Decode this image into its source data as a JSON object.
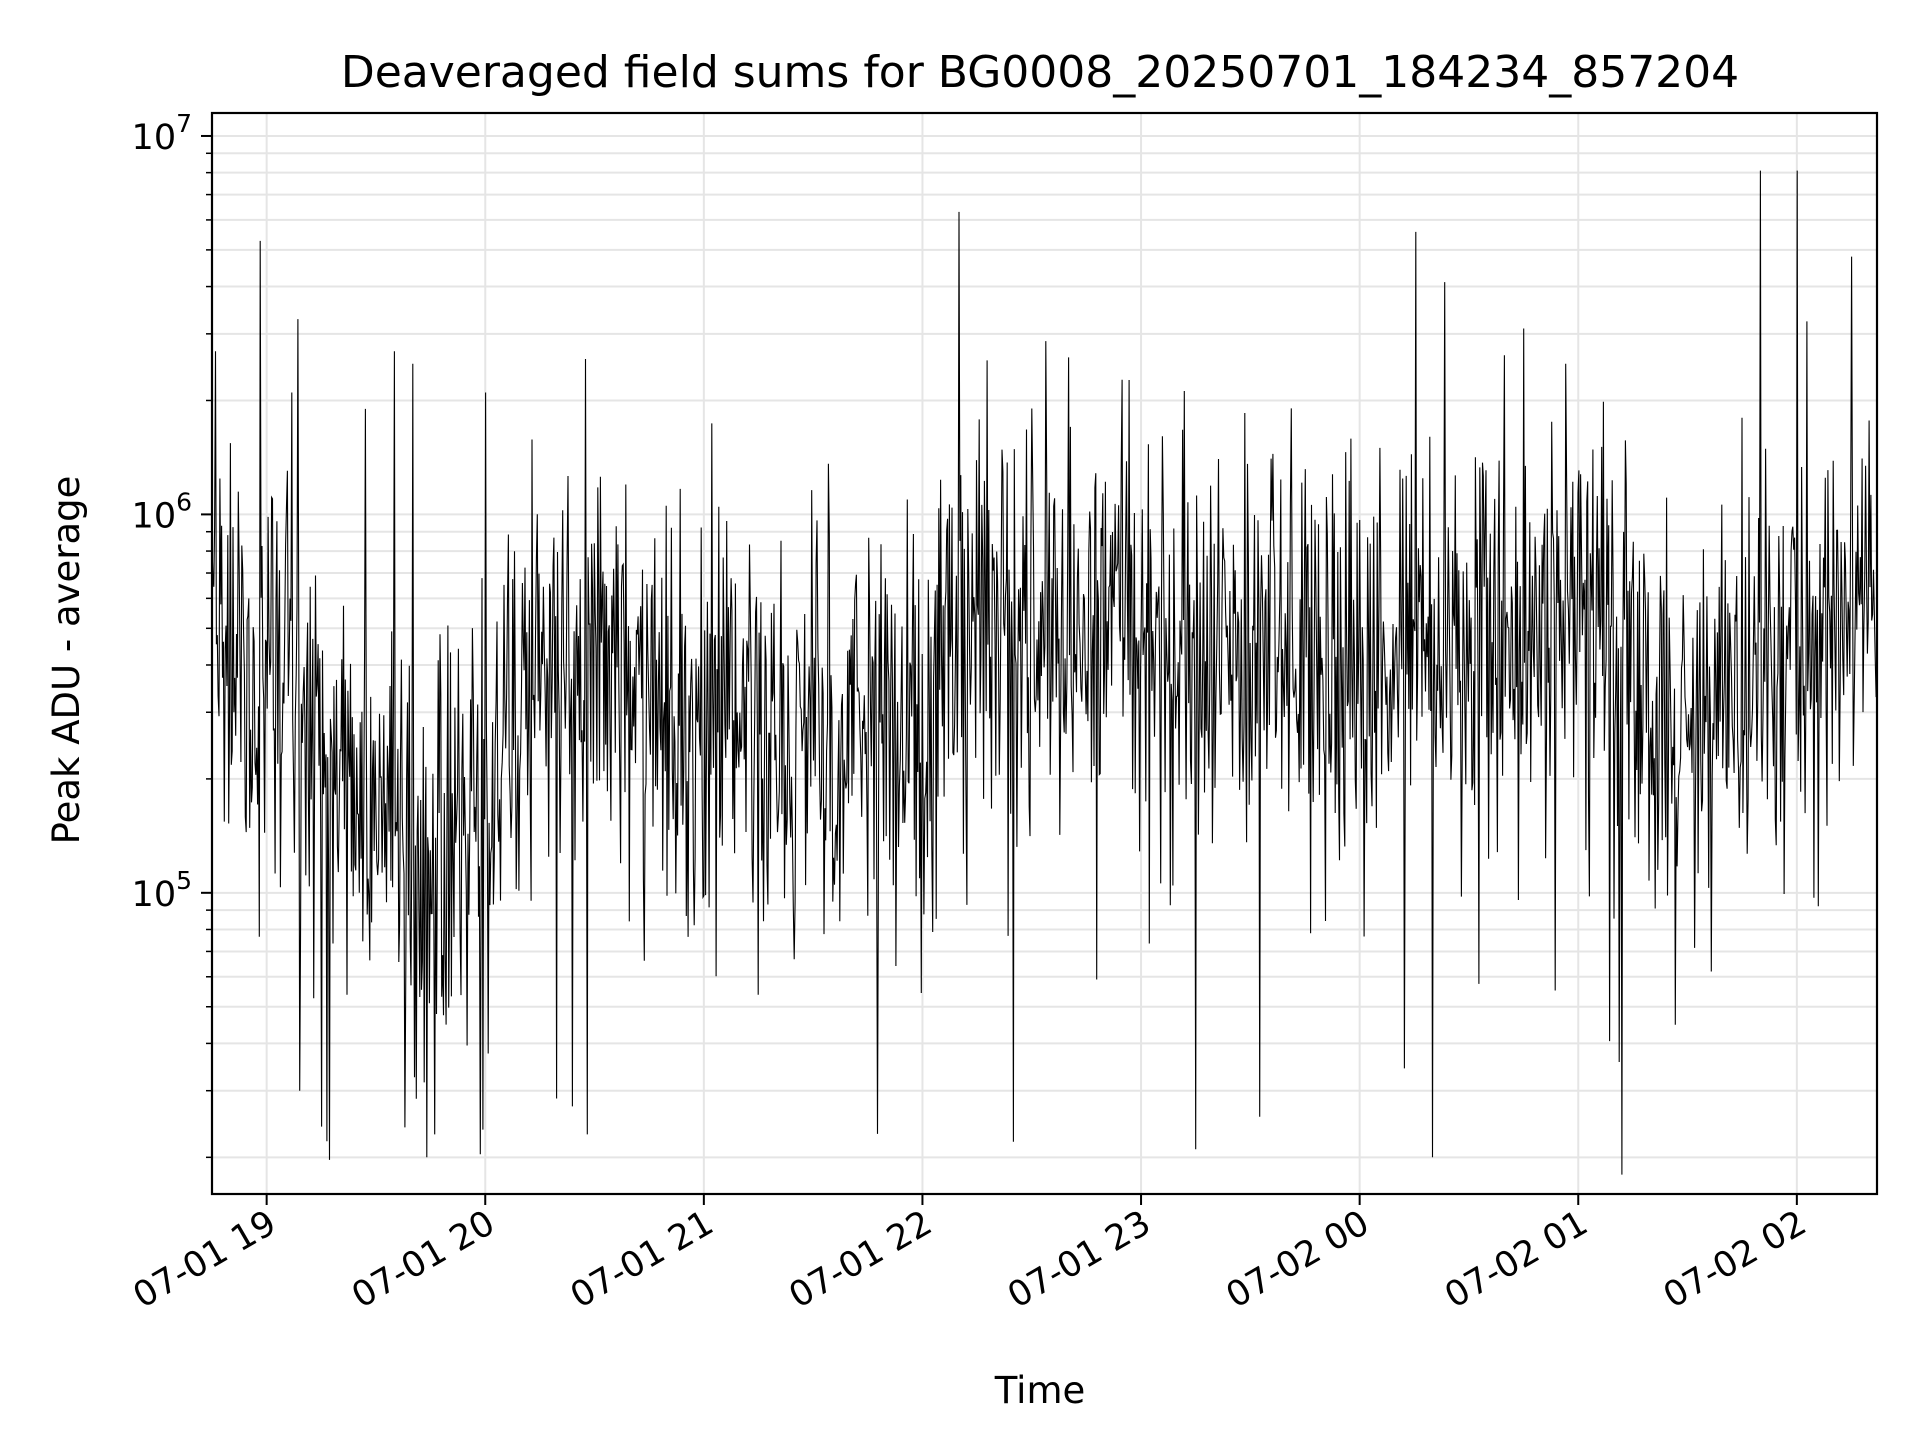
{
  "chart_data": {
    "type": "line",
    "title": "Deaveraged field sums for BG0008_20250701_184234_857204",
    "xlabel": "Time",
    "ylabel": "Peak ADU - average",
    "yscale": "log",
    "ylim": [
      16000,
      11500000
    ],
    "xlim": [
      "2025-07-01 18:45",
      "2025-07-02 02:22"
    ],
    "grid": true,
    "line_color": "#000000",
    "grid_color": "#e5e5e5",
    "x_ticks": [
      {
        "value": "2025-07-01 19:00",
        "label": "07-01 19"
      },
      {
        "value": "2025-07-01 20:00",
        "label": "07-01 20"
      },
      {
        "value": "2025-07-01 21:00",
        "label": "07-01 21"
      },
      {
        "value": "2025-07-01 22:00",
        "label": "07-01 22"
      },
      {
        "value": "2025-07-01 23:00",
        "label": "07-01 23"
      },
      {
        "value": "2025-07-02 00:00",
        "label": "07-02 00"
      },
      {
        "value": "2025-07-02 01:00",
        "label": "07-02 01"
      },
      {
        "value": "2025-07-02 02:00",
        "label": "07-02 02"
      }
    ],
    "y_ticks": [
      {
        "value": 100000,
        "base": "10",
        "exp": "5"
      },
      {
        "value": 1000000,
        "base": "10",
        "exp": "6"
      },
      {
        "value": 10000000,
        "base": "10",
        "exp": "7"
      }
    ],
    "series_profile": {
      "typical_level": [
        {
          "time": "2025-07-01 18:45",
          "value": 450000
        },
        {
          "time": "2025-07-01 19:10",
          "value": 300000
        },
        {
          "time": "2025-07-01 19:25",
          "value": 170000
        },
        {
          "time": "2025-07-01 19:45",
          "value": 110000
        },
        {
          "time": "2025-07-01 20:00",
          "value": 170000
        },
        {
          "time": "2025-07-01 20:10",
          "value": 350000
        },
        {
          "time": "2025-07-01 20:30",
          "value": 400000
        },
        {
          "time": "2025-07-01 21:00",
          "value": 270000
        },
        {
          "time": "2025-07-01 21:30",
          "value": 250000
        },
        {
          "time": "2025-07-01 22:00",
          "value": 300000
        },
        {
          "time": "2025-07-01 22:20",
          "value": 500000
        },
        {
          "time": "2025-07-01 23:00",
          "value": 500000
        },
        {
          "time": "2025-07-02 00:00",
          "value": 450000
        },
        {
          "time": "2025-07-02 00:45",
          "value": 520000
        },
        {
          "time": "2025-07-02 01:30",
          "value": 300000
        },
        {
          "time": "2025-07-02 01:50",
          "value": 420000
        },
        {
          "time": "2025-07-02 02:22",
          "value": 650000
        }
      ],
      "spikes": [
        {
          "time": "2025-07-01 18:46",
          "value": 2700000
        },
        {
          "time": "2025-07-01 19:07",
          "value": 2100000
        },
        {
          "time": "2025-07-01 19:27",
          "value": 1900000
        },
        {
          "time": "2025-07-01 19:35",
          "value": 2700000
        },
        {
          "time": "2025-07-01 19:40",
          "value": 2500000
        },
        {
          "time": "2025-07-01 20:00",
          "value": 2100000
        },
        {
          "time": "2025-07-01 22:10",
          "value": 6300000
        },
        {
          "time": "2025-07-01 22:40",
          "value": 2600000
        },
        {
          "time": "2025-07-02 00:45",
          "value": 3100000
        },
        {
          "time": "2025-07-02 01:50",
          "value": 8100000
        },
        {
          "time": "2025-07-02 02:00",
          "value": 8100000
        },
        {
          "time": "2025-07-02 02:15",
          "value": 4800000
        }
      ],
      "dips": [
        {
          "time": "2025-07-01 19:09",
          "value": 30000
        },
        {
          "time": "2025-07-01 19:38",
          "value": 24000
        },
        {
          "time": "2025-07-01 19:44",
          "value": 20000
        },
        {
          "time": "2025-07-01 20:28",
          "value": 23000
        },
        {
          "time": "2025-07-01 22:25",
          "value": 22000
        },
        {
          "time": "2025-07-01 23:15",
          "value": 21000
        },
        {
          "time": "2025-07-02 00:20",
          "value": 20000
        },
        {
          "time": "2025-07-02 01:12",
          "value": 18000
        }
      ]
    }
  }
}
